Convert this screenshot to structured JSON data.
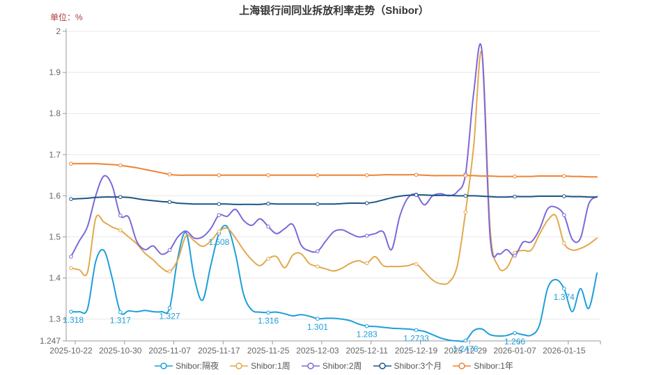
{
  "header": {
    "title": "上海银行间同业拆放利率走势（Shibor）",
    "unit_label": "单位：%"
  },
  "colors": {
    "axis_line": "#999999",
    "grid_line": "#e8e8e8",
    "tick_text": "#666666",
    "title_text": "#333333",
    "unit_text": "#b03a3a"
  },
  "chart_data": {
    "type": "line",
    "title": "上海银行间同业拆放利率走势（Shibor）",
    "ylabel": "单位：%",
    "ylim": [
      1.247,
      2.0
    ],
    "grid": "horizontal",
    "legend_position": "bottom",
    "x": [
      "2025-10-22",
      "2025-10-23",
      "2025-10-24",
      "2025-10-27",
      "2025-10-28",
      "2025-10-29",
      "2025-10-30",
      "2025-10-31",
      "2025-11-03",
      "2025-11-04",
      "2025-11-05",
      "2025-11-06",
      "2025-11-07",
      "2025-11-10",
      "2025-11-11",
      "2025-11-12",
      "2025-11-13",
      "2025-11-14",
      "2025-11-17",
      "2025-11-18",
      "2025-11-19",
      "2025-11-20",
      "2025-11-21",
      "2025-11-24",
      "2025-11-25",
      "2025-11-26",
      "2025-11-27",
      "2025-11-28",
      "2025-12-01",
      "2025-12-02",
      "2025-12-03",
      "2025-12-04",
      "2025-12-05",
      "2025-12-08",
      "2025-12-09",
      "2025-12-10",
      "2025-12-11",
      "2025-12-12",
      "2025-12-15",
      "2025-12-16",
      "2025-12-17",
      "2025-12-18",
      "2025-12-19",
      "2025-12-22",
      "2025-12-23",
      "2025-12-24",
      "2025-12-25",
      "2025-12-26",
      "2025-12-29",
      "2025-12-30",
      "2025-12-31",
      "2026-01-02",
      "2026-01-05",
      "2026-01-06",
      "2026-01-07",
      "2026-01-08",
      "2026-01-09",
      "2026-01-12",
      "2026-01-13",
      "2026-01-14",
      "2026-01-15",
      "2026-01-16",
      "2026-01-19",
      "2026-01-20",
      "2026-01-21"
    ],
    "tick_indices": [
      0,
      6,
      12,
      18,
      24,
      30,
      36,
      42,
      48,
      54,
      60
    ],
    "x_tick_labels": [
      "2025-10-22",
      "2025-10-30",
      "2025-11-07",
      "2025-11-17",
      "2025-11-25",
      "2025-12-03",
      "2025-12-11",
      "2025-12-19",
      "2025-12-29",
      "2026-01-07",
      "2026-01-15"
    ],
    "y_ticks": [
      {
        "value": 2,
        "label": "2",
        "grid": true
      },
      {
        "value": 1.9,
        "label": "1.9",
        "grid": true
      },
      {
        "value": 1.8,
        "label": "1.8",
        "grid": true
      },
      {
        "value": 1.7,
        "label": "1.7",
        "grid": true
      },
      {
        "value": 1.6,
        "label": "1.6",
        "grid": true
      },
      {
        "value": 1.5,
        "label": "1.5",
        "grid": true
      },
      {
        "value": 1.4,
        "label": "1.4",
        "grid": true
      },
      {
        "value": 1.3,
        "label": "1.3",
        "grid": true
      },
      {
        "value": 1.247,
        "label": "1.247",
        "grid": false
      }
    ],
    "series": [
      {
        "id": "overnight",
        "name": "Shibor:隔夜",
        "color": "#1E9FD9",
        "values": [
          1.318,
          1.318,
          1.325,
          1.44,
          1.467,
          1.4,
          1.317,
          1.32,
          1.318,
          1.321,
          1.318,
          1.318,
          1.327,
          1.45,
          1.51,
          1.4,
          1.346,
          1.43,
          1.508,
          1.525,
          1.46,
          1.36,
          1.322,
          1.317,
          1.316,
          1.317,
          1.313,
          1.308,
          1.311,
          1.307,
          1.301,
          1.302,
          1.302,
          1.3,
          1.296,
          1.288,
          1.283,
          1.282,
          1.28,
          1.278,
          1.277,
          1.276,
          1.2733,
          1.27,
          1.262,
          1.254,
          1.249,
          1.247,
          1.2478,
          1.272,
          1.276,
          1.262,
          1.259,
          1.26,
          1.266,
          1.262,
          1.261,
          1.285,
          1.375,
          1.396,
          1.374,
          1.318,
          1.374,
          1.326,
          1.412
        ],
        "point_labels": {
          "0": "1.318",
          "6": "1.317",
          "12": "1.327",
          "18": "1.508",
          "24": "1.316",
          "30": "1.301",
          "36": "1.283",
          "42": "1.2733",
          "48": "1.2478",
          "54": "1.266",
          "60": "1.374"
        }
      },
      {
        "id": "1w",
        "name": "Shibor:1周",
        "color": "#E3A84B",
        "values": [
          1.424,
          1.42,
          1.414,
          1.545,
          1.536,
          1.524,
          1.516,
          1.5,
          1.483,
          1.46,
          1.444,
          1.425,
          1.416,
          1.445,
          1.503,
          1.49,
          1.477,
          1.49,
          1.513,
          1.521,
          1.498,
          1.468,
          1.444,
          1.43,
          1.447,
          1.452,
          1.425,
          1.456,
          1.459,
          1.435,
          1.428,
          1.422,
          1.417,
          1.424,
          1.436,
          1.442,
          1.436,
          1.452,
          1.43,
          1.428,
          1.428,
          1.43,
          1.434,
          1.415,
          1.395,
          1.386,
          1.39,
          1.43,
          1.56,
          1.72,
          1.948,
          1.52,
          1.428,
          1.424,
          1.461,
          1.467,
          1.468,
          1.506,
          1.54,
          1.551,
          1.4845,
          1.468,
          1.472,
          1.482,
          1.497
        ]
      },
      {
        "id": "2w",
        "name": "Shibor:2周",
        "color": "#7D68D8",
        "values": [
          1.452,
          1.49,
          1.525,
          1.6,
          1.648,
          1.625,
          1.552,
          1.548,
          1.489,
          1.469,
          1.478,
          1.458,
          1.468,
          1.5,
          1.514,
          1.497,
          1.5,
          1.52,
          1.553,
          1.55,
          1.567,
          1.54,
          1.528,
          1.544,
          1.525,
          1.508,
          1.52,
          1.53,
          1.48,
          1.466,
          1.465,
          1.49,
          1.513,
          1.517,
          1.508,
          1.5,
          1.503,
          1.508,
          1.512,
          1.469,
          1.55,
          1.595,
          1.603,
          1.578,
          1.6,
          1.605,
          1.6,
          1.61,
          1.652,
          1.85,
          1.953,
          1.5,
          1.459,
          1.469,
          1.4545,
          1.487,
          1.488,
          1.518,
          1.568,
          1.572,
          1.553,
          1.494,
          1.497,
          1.58,
          1.598
        ]
      },
      {
        "id": "3m",
        "name": "Shibor:3个月",
        "color": "#1C5687",
        "values": [
          1.592,
          1.593,
          1.594,
          1.596,
          1.597,
          1.597,
          1.597,
          1.596,
          1.593,
          1.59,
          1.588,
          1.586,
          1.585,
          1.582,
          1.581,
          1.58,
          1.58,
          1.58,
          1.58,
          1.58,
          1.579,
          1.579,
          1.579,
          1.579,
          1.581,
          1.58,
          1.58,
          1.58,
          1.58,
          1.58,
          1.58,
          1.58,
          1.58,
          1.581,
          1.582,
          1.582,
          1.582,
          1.585,
          1.59,
          1.595,
          1.599,
          1.601,
          1.602,
          1.602,
          1.601,
          1.601,
          1.601,
          1.6,
          1.6,
          1.6,
          1.599,
          1.598,
          1.597,
          1.597,
          1.598,
          1.598,
          1.598,
          1.599,
          1.599,
          1.599,
          1.599,
          1.598,
          1.598,
          1.597,
          1.597
        ]
      },
      {
        "id": "1y",
        "name": "Shibor:1年",
        "color": "#EE8233",
        "values": [
          1.678,
          1.678,
          1.678,
          1.678,
          1.677,
          1.676,
          1.674,
          1.671,
          1.668,
          1.664,
          1.66,
          1.656,
          1.652,
          1.65,
          1.65,
          1.65,
          1.65,
          1.65,
          1.65,
          1.65,
          1.65,
          1.65,
          1.65,
          1.65,
          1.65,
          1.65,
          1.65,
          1.65,
          1.65,
          1.65,
          1.65,
          1.65,
          1.65,
          1.65,
          1.65,
          1.65,
          1.65,
          1.65,
          1.651,
          1.651,
          1.651,
          1.651,
          1.651,
          1.65,
          1.649,
          1.649,
          1.649,
          1.649,
          1.649,
          1.649,
          1.648,
          1.648,
          1.647,
          1.647,
          1.647,
          1.647,
          1.647,
          1.648,
          1.648,
          1.648,
          1.648,
          1.647,
          1.647,
          1.646,
          1.646
        ]
      }
    ]
  }
}
